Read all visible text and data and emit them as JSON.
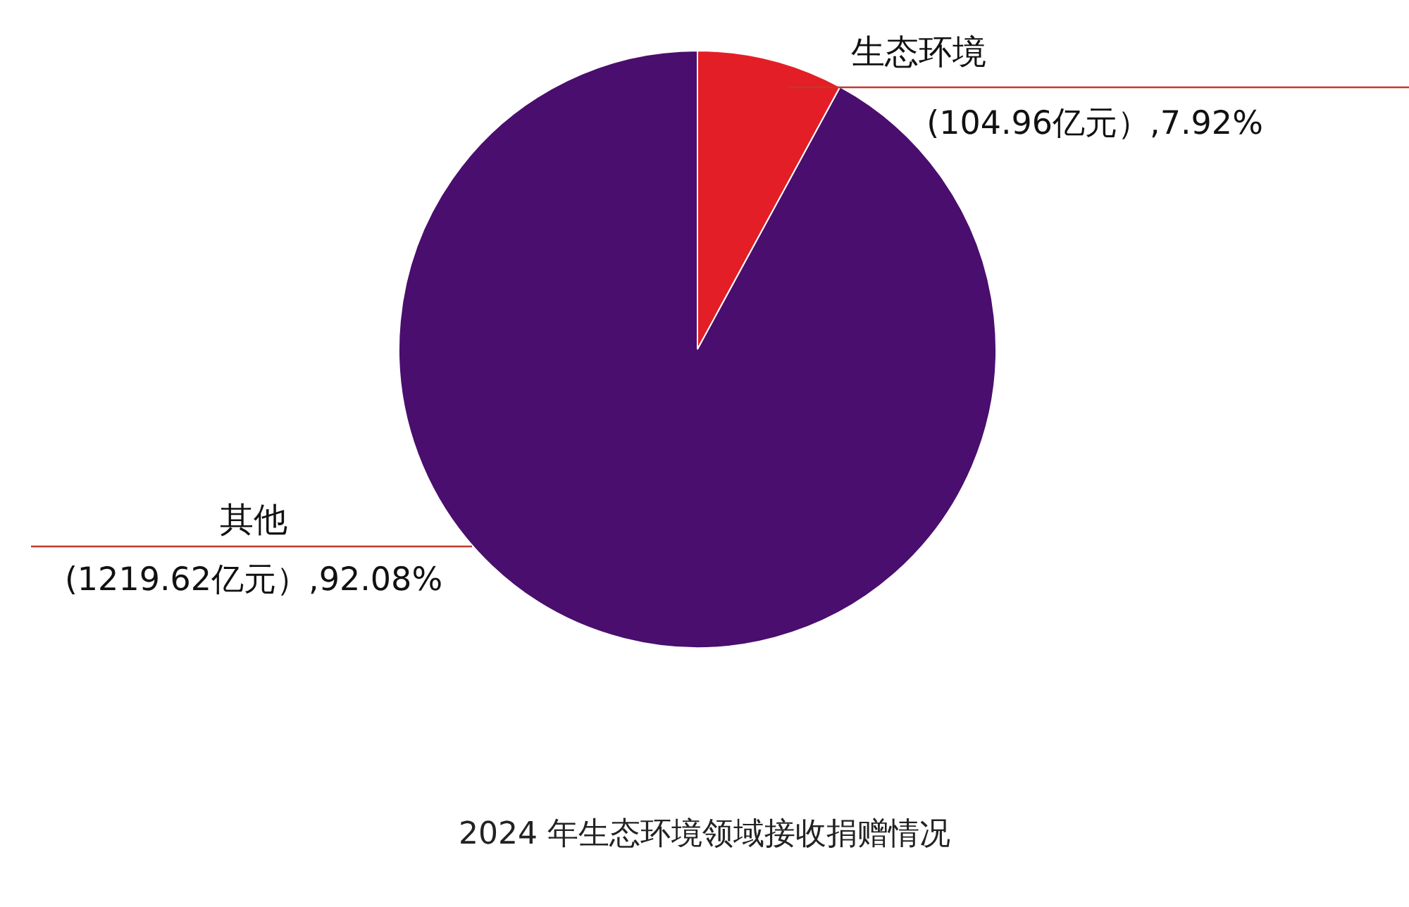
{
  "chart_data": {
    "type": "pie",
    "title": "2024 年生态环境领域接收捐赠情况",
    "categories": [
      "生态环境",
      "其他"
    ],
    "values": [
      104.96,
      1219.62
    ],
    "colors": [
      "#e41e26",
      "#4a0e6e"
    ],
    "value_labels": [
      "(104.96亿元）,7.92%",
      "(1219.62亿元）,92.08%"
    ]
  }
}
